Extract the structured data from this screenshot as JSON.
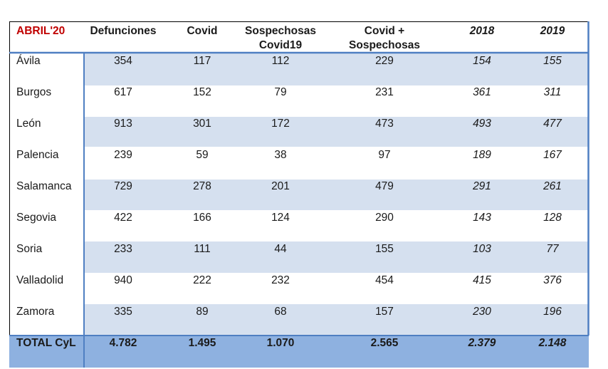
{
  "table": {
    "headers": [
      "ABRIL'20",
      "Defunciones",
      "Covid",
      "Sospechosas\nCovid19",
      "Covid +\nSospechosas",
      "2018",
      "2019"
    ],
    "rows": [
      [
        "Ávila",
        "354",
        "117",
        "112",
        "229",
        "154",
        "155"
      ],
      [
        "Burgos",
        "617",
        "152",
        "79",
        "231",
        "361",
        "311"
      ],
      [
        "León",
        "913",
        "301",
        "172",
        "473",
        "493",
        "477"
      ],
      [
        "Palencia",
        "239",
        "59",
        "38",
        "97",
        "189",
        "167"
      ],
      [
        "Salamanca",
        "729",
        "278",
        "201",
        "479",
        "291",
        "261"
      ],
      [
        "Segovia",
        "422",
        "166",
        "124",
        "290",
        "143",
        "128"
      ],
      [
        "Soria",
        "233",
        "111",
        "44",
        "155",
        "103",
        "77"
      ],
      [
        "Valladolid",
        "940",
        "222",
        "232",
        "454",
        "415",
        "376"
      ],
      [
        "Zamora",
        "335",
        "89",
        "68",
        "157",
        "230",
        "196"
      ]
    ],
    "total": [
      "TOTAL CyL",
      "4.782",
      "1.495",
      "1.070",
      "2.565",
      "2.379",
      "2.148"
    ]
  },
  "colors": {
    "header_accent": "#c00000",
    "band": "#d5e0ef",
    "total_bg": "#8eb1e0",
    "border_blue": "#4f7fc2"
  }
}
